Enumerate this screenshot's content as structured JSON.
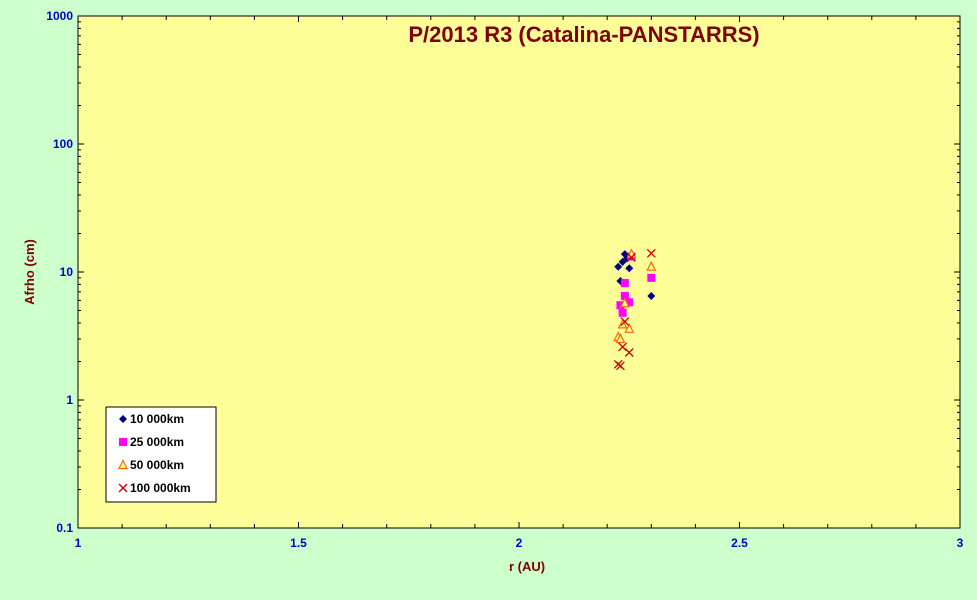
{
  "chart_data": {
    "type": "scatter",
    "title": "P/2013 R3 (Catalina-PANSTARRS)",
    "xlabel": "r (AU)",
    "ylabel": "Afrho (cm)",
    "xlim": [
      1,
      3
    ],
    "ylim": [
      0.1,
      1000
    ],
    "y_scale": "log",
    "x_ticks": [
      "1",
      "1.5",
      "2",
      "2.5",
      "3"
    ],
    "y_ticks": [
      "0.1",
      "1",
      "10",
      "100",
      "1000"
    ],
    "grid": false,
    "legend_position": "bottom-left",
    "colors": {
      "plot_background": "#ffff99",
      "page_background": "#ccffcc",
      "tick_labels": "#0000cc",
      "titles": "#800000"
    },
    "series": [
      {
        "name": "10 000km",
        "marker": "diamond",
        "color": "#000080",
        "points": [
          [
            2.225,
            11.0
          ],
          [
            2.23,
            8.5
          ],
          [
            2.235,
            12.0
          ],
          [
            2.24,
            13.8
          ],
          [
            2.245,
            12.8
          ],
          [
            2.25,
            10.7
          ],
          [
            2.3,
            6.5
          ]
        ]
      },
      {
        "name": "25 000km",
        "marker": "square",
        "color": "#ff00ff",
        "points": [
          [
            2.23,
            5.5
          ],
          [
            2.235,
            4.8
          ],
          [
            2.24,
            8.2
          ],
          [
            2.24,
            6.5
          ],
          [
            2.25,
            5.8
          ],
          [
            2.255,
            13.2
          ],
          [
            2.3,
            9.0
          ]
        ]
      },
      {
        "name": "50 000km",
        "marker": "triangle",
        "color": "#ff6600",
        "points": [
          [
            2.225,
            3.1
          ],
          [
            2.23,
            3.0
          ],
          [
            2.235,
            3.9
          ],
          [
            2.24,
            5.7
          ],
          [
            2.25,
            3.6
          ],
          [
            2.255,
            13.8
          ],
          [
            2.3,
            11.0
          ]
        ]
      },
      {
        "name": "100 000km",
        "marker": "x",
        "color": "#cc0000",
        "points": [
          [
            2.225,
            1.9
          ],
          [
            2.23,
            1.85
          ],
          [
            2.235,
            2.6
          ],
          [
            2.24,
            4.1
          ],
          [
            2.25,
            2.35
          ],
          [
            2.255,
            13.0
          ],
          [
            2.3,
            14.0
          ]
        ]
      }
    ]
  }
}
